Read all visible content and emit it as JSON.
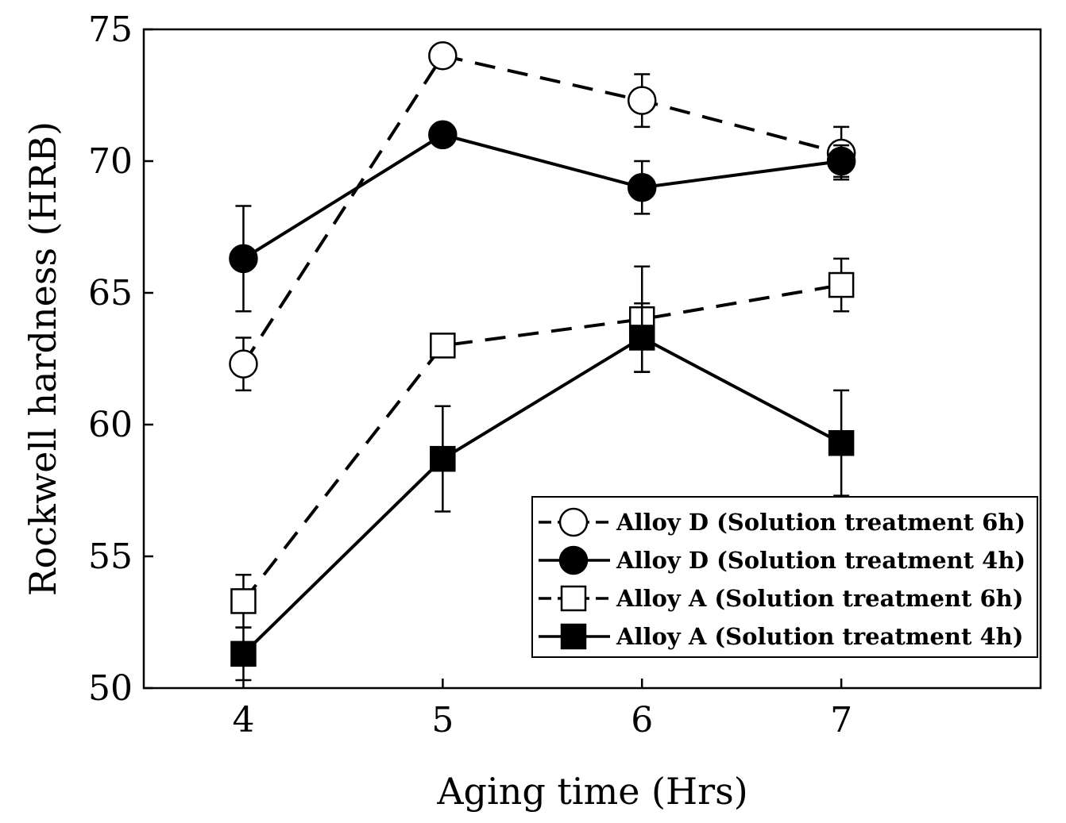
{
  "chart_data": {
    "type": "line",
    "title": "",
    "xlabel": "Aging time (Hrs)",
    "ylabel": "Rockwell hardness (HRB)",
    "xlim": [
      3.5,
      8.0
    ],
    "ylim": [
      50,
      75
    ],
    "xticks": [
      4,
      5,
      6,
      7
    ],
    "yticks": [
      50,
      55,
      60,
      65,
      70,
      75
    ],
    "legend_position": "bottom-right",
    "series": [
      {
        "name": "Alloy D (Solution treatment 6h)",
        "marker": "open-circle",
        "line": "dashed",
        "x": [
          4,
          5,
          6,
          7
        ],
        "y": [
          62.3,
          74.0,
          72.3,
          70.3
        ],
        "err": [
          1.0,
          0,
          1.0,
          1.0
        ]
      },
      {
        "name": "Alloy D (Solution treatment 4h)",
        "marker": "filled-circle",
        "line": "solid",
        "x": [
          4,
          5,
          6,
          7
        ],
        "y": [
          66.3,
          71.0,
          69.0,
          70.0
        ],
        "err": [
          2.0,
          0,
          1.0,
          0.6
        ]
      },
      {
        "name": "Alloy A (Solution treatment 6h)",
        "marker": "open-square",
        "line": "dashed",
        "x": [
          4,
          5,
          6,
          7
        ],
        "y": [
          53.3,
          63.0,
          64.0,
          65.3
        ],
        "err": [
          1.0,
          0,
          2.0,
          1.0
        ]
      },
      {
        "name": "Alloy A (Solution treatment 4h)",
        "marker": "filled-square",
        "line": "solid",
        "x": [
          4,
          5,
          6,
          7
        ],
        "y": [
          51.3,
          58.7,
          63.3,
          59.3
        ],
        "err": [
          1.0,
          2.0,
          1.3,
          2.0
        ]
      }
    ]
  }
}
